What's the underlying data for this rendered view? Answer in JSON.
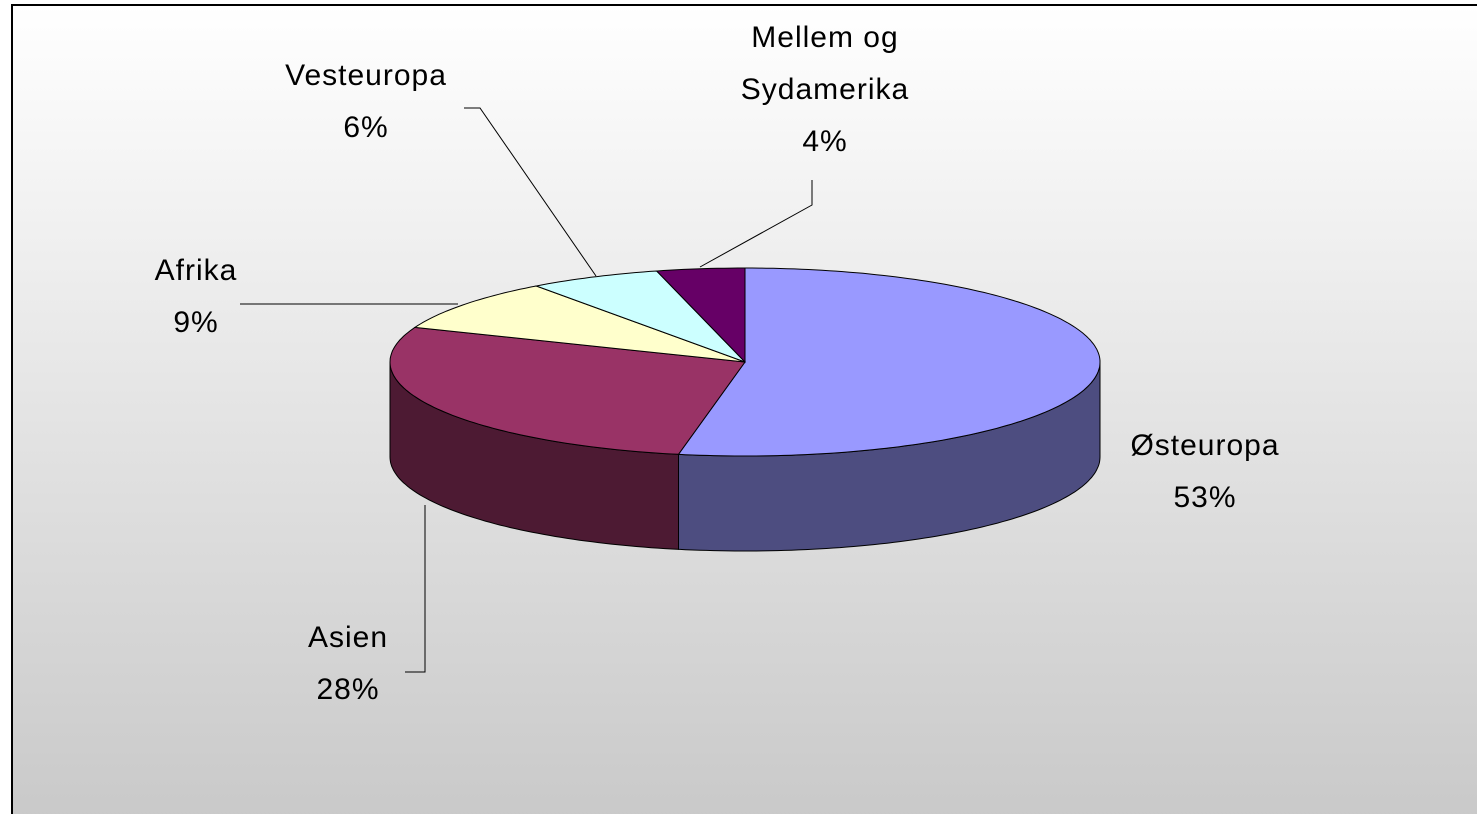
{
  "chart_data": {
    "type": "pie3d",
    "categories": [
      "Østeuropa",
      "Asien",
      "Afrika",
      "Vesteuropa",
      "Mellem og Sydamerika"
    ],
    "values": [
      53,
      28,
      9,
      6,
      4
    ],
    "value_labels": [
      "53%",
      "28%",
      "9%",
      "6%",
      "4%"
    ],
    "colors": [
      "#9999ff",
      "#993366",
      "#ffffcc",
      "#ccffff",
      "#660066"
    ]
  }
}
